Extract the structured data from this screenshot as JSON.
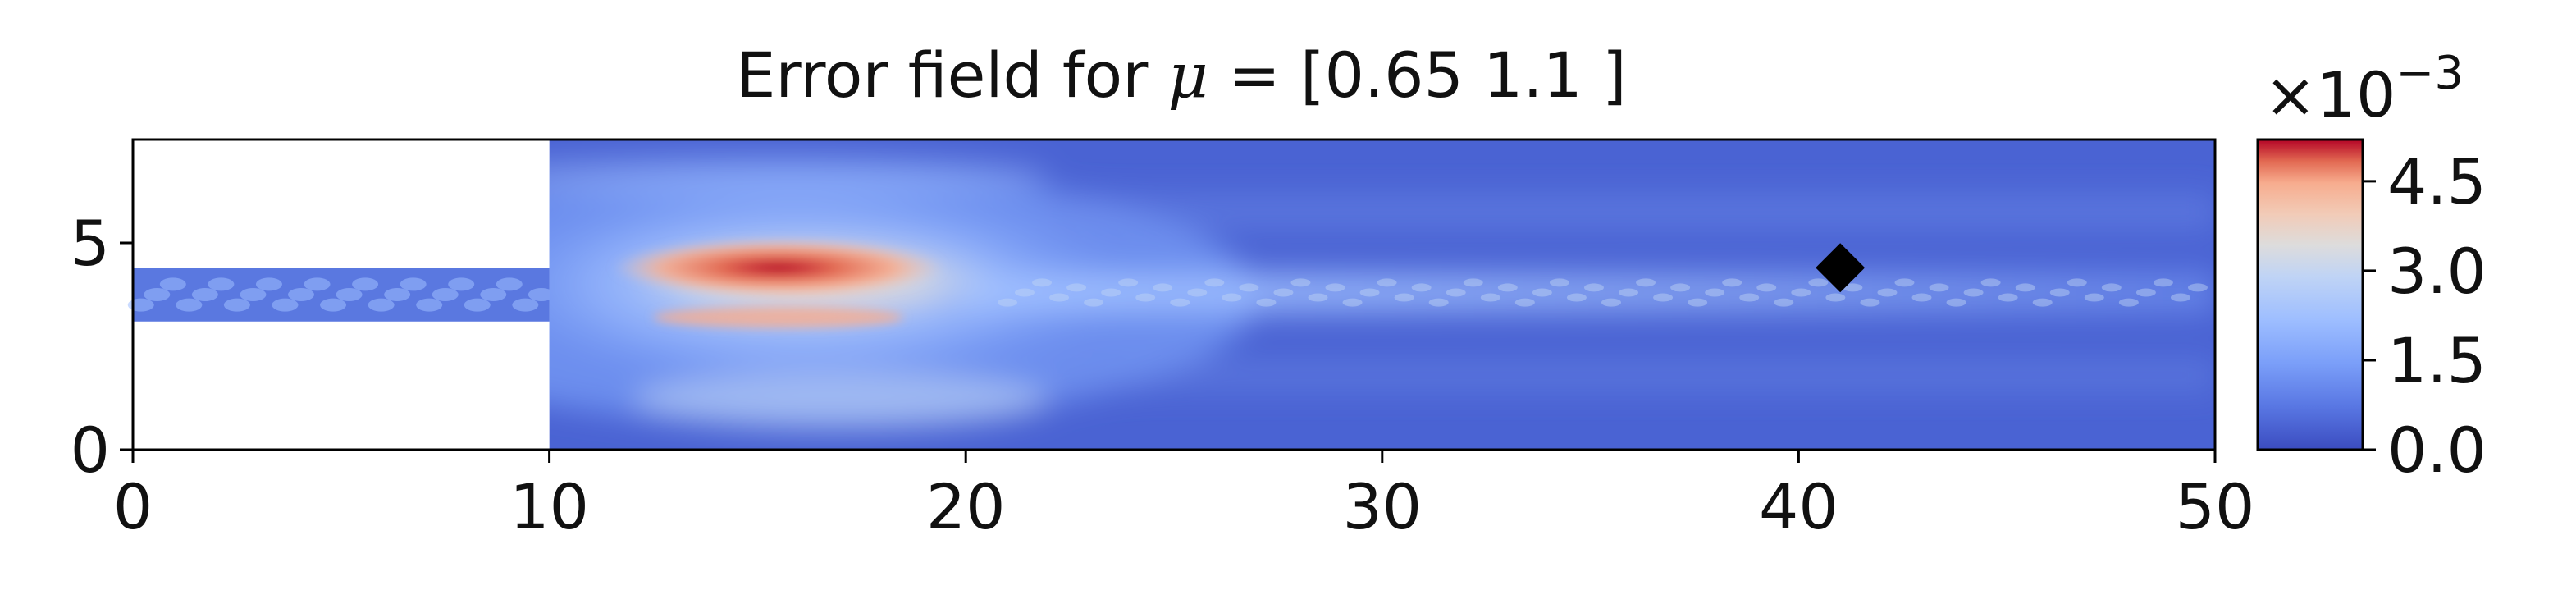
{
  "chart_data": {
    "type": "heatmap",
    "title_prefix": "Error field for ",
    "title_symbol": "μ",
    "title_suffix": " = [0.65 1.1 ]",
    "x_ticks": [
      "0",
      "10",
      "20",
      "30",
      "40",
      "50"
    ],
    "y_ticks": [
      "0",
      "5"
    ],
    "x_range": [
      0,
      50
    ],
    "y_range": [
      0,
      7.5
    ],
    "colorbar": {
      "colormap": "coolwarm",
      "range": [
        0,
        0.0052
      ],
      "tick_values": [
        0,
        0.0015,
        0.003,
        0.0045
      ],
      "tick_labels": [
        "0.0",
        "1.5",
        "3.0",
        "4.5"
      ],
      "multiplier_base": "×10",
      "multiplier_exp": "−3"
    },
    "domain_shape": {
      "inlet_channel": {
        "x": [
          0,
          10
        ],
        "y": [
          3.1,
          4.4
        ]
      },
      "main_region": {
        "x": [
          10,
          50
        ],
        "y": [
          0,
          7.5
        ]
      }
    },
    "error_peak": {
      "x": 15.5,
      "y": 4.4,
      "value": 0.005
    },
    "marker": {
      "shape": "diamond",
      "x": 41,
      "y": 4.4,
      "color": "#000000"
    },
    "colors": {
      "low": "#3b4cc0",
      "mid": "#dddcdc",
      "high": "#b40426"
    }
  }
}
